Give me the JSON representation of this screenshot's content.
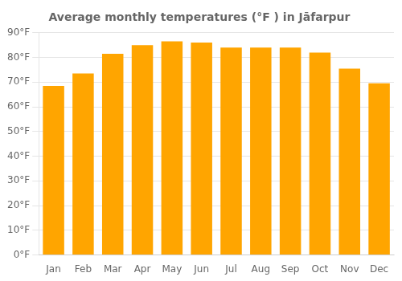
{
  "chart_data": {
    "type": "bar",
    "title": "Average monthly temperatures (°F ) in Jāfarpur",
    "categories": [
      "Jan",
      "Feb",
      "Mar",
      "Apr",
      "May",
      "Jun",
      "Jul",
      "Aug",
      "Sep",
      "Oct",
      "Nov",
      "Dec"
    ],
    "values": [
      68.5,
      73.5,
      81.5,
      85.0,
      86.5,
      86.0,
      84.0,
      84.0,
      84.0,
      82.0,
      75.5,
      69.5
    ],
    "color": "#FFA500",
    "ylim": [
      0,
      90
    ],
    "yticks": [
      {
        "value": 0,
        "label": "0°F"
      },
      {
        "value": 10,
        "label": "10°F"
      },
      {
        "value": 20,
        "label": "20°F"
      },
      {
        "value": 30,
        "label": "30°F"
      },
      {
        "value": 40,
        "label": "40°F"
      },
      {
        "value": 50,
        "label": "50°F"
      },
      {
        "value": 60,
        "label": "60°F"
      },
      {
        "value": 70,
        "label": "70°F"
      },
      {
        "value": 80,
        "label": "80°F"
      },
      {
        "value": 90,
        "label": "90°F"
      }
    ],
    "grid": true
  }
}
